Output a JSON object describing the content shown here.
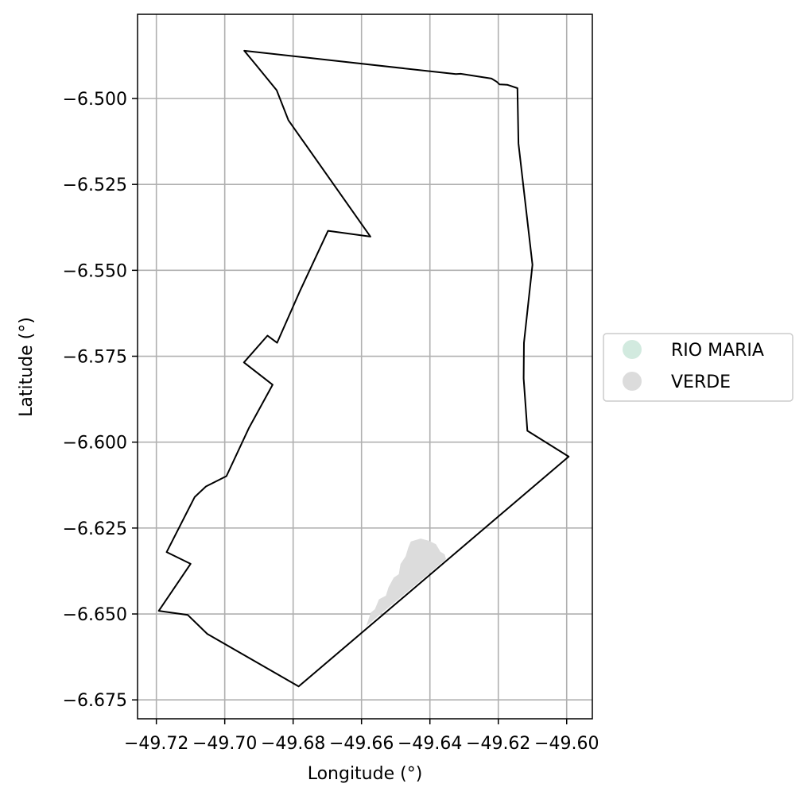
{
  "chart_data": {
    "type": "map",
    "xlabel": "Longitude (°)",
    "ylabel": "Latitude (°)",
    "xlim": [
      -49.7255,
      -49.5925
    ],
    "ylim": [
      -6.6805,
      -6.4755
    ],
    "x_ticks": [
      -49.72,
      -49.7,
      -49.68,
      -49.66,
      -49.64,
      -49.62,
      -49.6
    ],
    "x_tick_labels": [
      "−49.72",
      "−49.70",
      "−49.68",
      "−49.66",
      "−49.64",
      "−49.62",
      "−49.60"
    ],
    "y_ticks": [
      -6.5,
      -6.525,
      -6.55,
      -6.575,
      -6.6,
      -6.625,
      -6.65,
      -6.675
    ],
    "y_tick_labels": [
      "−6.500",
      "−6.525",
      "−6.550",
      "−6.575",
      "−6.600",
      "−6.625",
      "−6.650",
      "−6.675"
    ],
    "grid": true,
    "legend_position": "right",
    "legend": [
      {
        "label": "RIO MARIA",
        "color": "#d2eadf"
      },
      {
        "label": "VERDE",
        "color": "#dcdcdc"
      }
    ],
    "boundary": {
      "stroke": "#000000",
      "fill": "none",
      "coordinates": [
        [
          -49.6943,
          -6.4861
        ],
        [
          -49.6908,
          -6.4903
        ],
        [
          -49.6848,
          -6.4976
        ],
        [
          -49.6814,
          -6.5063
        ],
        [
          -49.6574,
          -6.5402
        ],
        [
          -49.6698,
          -6.5385
        ],
        [
          -49.6781,
          -6.5562
        ],
        [
          -49.6847,
          -6.5711
        ],
        [
          -49.6875,
          -6.569
        ],
        [
          -49.6944,
          -6.5768
        ],
        [
          -49.686,
          -6.5833
        ],
        [
          -49.693,
          -6.596
        ],
        [
          -49.6995,
          -6.6099
        ],
        [
          -49.7055,
          -6.6129
        ],
        [
          -49.7088,
          -6.616
        ],
        [
          -49.717,
          -6.632
        ],
        [
          -49.71,
          -6.6354
        ],
        [
          -49.7193,
          -6.6491
        ],
        [
          -49.7108,
          -6.6503
        ],
        [
          -49.7051,
          -6.6558
        ],
        [
          -49.6784,
          -6.6711
        ],
        [
          -49.5994,
          -6.6042
        ],
        [
          -49.6115,
          -6.5967
        ],
        [
          -49.6126,
          -6.5815
        ],
        [
          -49.6125,
          -6.5711
        ],
        [
          -49.61,
          -6.5484
        ],
        [
          -49.6141,
          -6.5131
        ],
        [
          -49.6144,
          -6.497
        ],
        [
          -49.6174,
          -6.496
        ],
        [
          -49.6196,
          -6.4959
        ],
        [
          -49.6205,
          -6.4951
        ],
        [
          -49.622,
          -6.4942
        ],
        [
          -49.631,
          -6.4928
        ],
        [
          -49.6324,
          -6.4929
        ],
        [
          -49.6943,
          -6.4861
        ]
      ]
    },
    "regions": [
      {
        "name": "VERDE",
        "color": "#dcdcdc",
        "coordinates": [
          [
            -49.6584,
            -6.6532
          ],
          [
            -49.6572,
            -6.6497
          ],
          [
            -49.656,
            -6.6487
          ],
          [
            -49.6548,
            -6.6458
          ],
          [
            -49.6528,
            -6.6448
          ],
          [
            -49.652,
            -6.6423
          ],
          [
            -49.6505,
            -6.6395
          ],
          [
            -49.649,
            -6.6385
          ],
          [
            -49.6485,
            -6.6355
          ],
          [
            -49.647,
            -6.6333
          ],
          [
            -49.6462,
            -6.6307
          ],
          [
            -49.6455,
            -6.629
          ],
          [
            -49.6427,
            -6.6282
          ],
          [
            -49.6403,
            -6.6288
          ],
          [
            -49.6383,
            -6.6298
          ],
          [
            -49.637,
            -6.632
          ],
          [
            -49.6358,
            -6.6327
          ],
          [
            -49.6354,
            -6.634
          ],
          [
            -49.6584,
            -6.6532
          ]
        ]
      }
    ]
  }
}
